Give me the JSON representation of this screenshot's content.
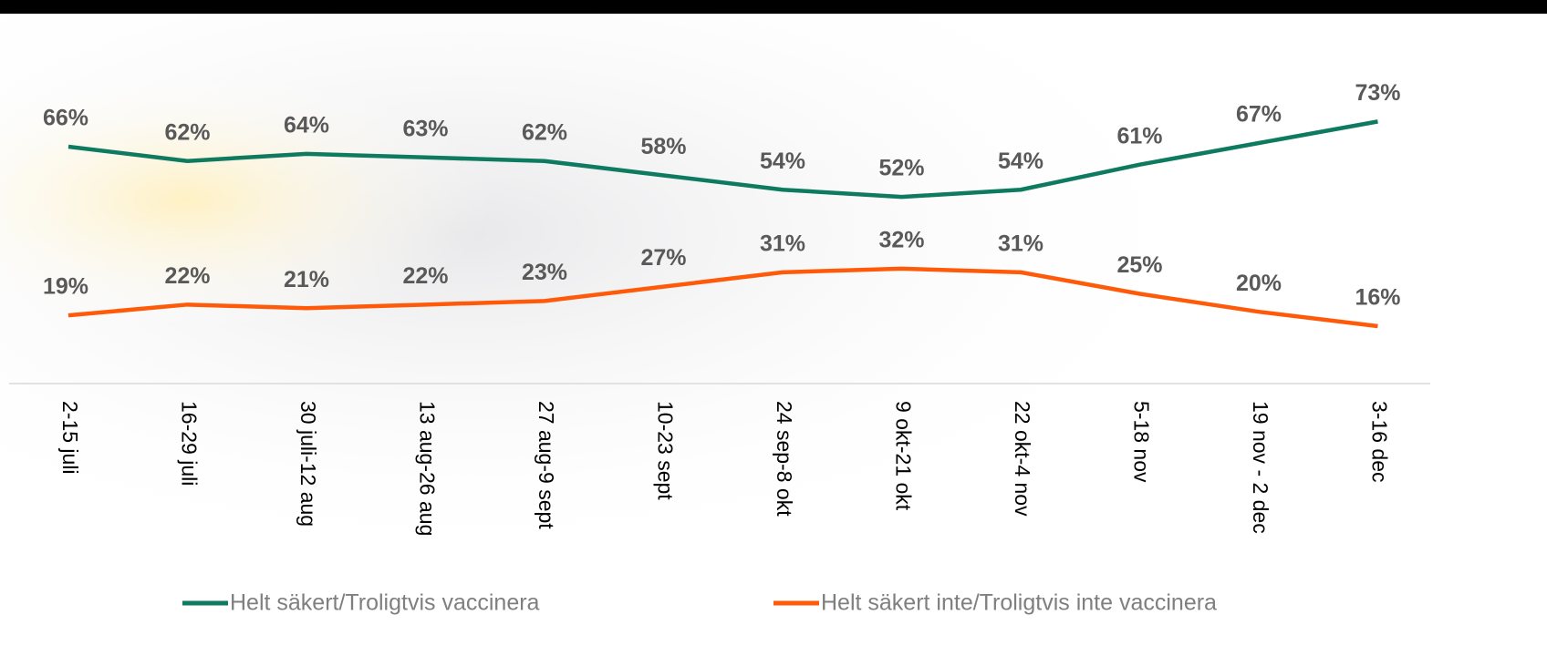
{
  "chart_data": {
    "type": "line",
    "categories": [
      "2-15 juli",
      "16-29 juli",
      "30 juli-12 aug",
      "13 aug-26 aug",
      "27 aug-9 sept",
      "10-23 sept",
      "24 sep-8 okt",
      "9 okt-21 okt",
      "22 okt-4 nov",
      "5-18 nov",
      "19 nov - 2 dec",
      "3-16 dec"
    ],
    "series": [
      {
        "name": "Helt säkert/Troligtvis vaccinera",
        "color": "#0e7a5f",
        "values": [
          66,
          62,
          64,
          63,
          62,
          58,
          54,
          52,
          54,
          61,
          67,
          73
        ],
        "value_labels": [
          "66%",
          "62%",
          "64%",
          "63%",
          "62%",
          "58%",
          "54%",
          "52%",
          "54%",
          "61%",
          "67%",
          "73%"
        ]
      },
      {
        "name": "Helt säkert inte/Troligtvis inte vaccinera",
        "color": "#ff5a0a",
        "values": [
          19,
          22,
          21,
          22,
          23,
          27,
          31,
          32,
          31,
          25,
          20,
          16
        ],
        "value_labels": [
          "19%",
          "22%",
          "21%",
          "22%",
          "23%",
          "27%",
          "31%",
          "32%",
          "31%",
          "25%",
          "20%",
          "16%"
        ]
      }
    ],
    "ylim": [
      0,
      100
    ]
  }
}
